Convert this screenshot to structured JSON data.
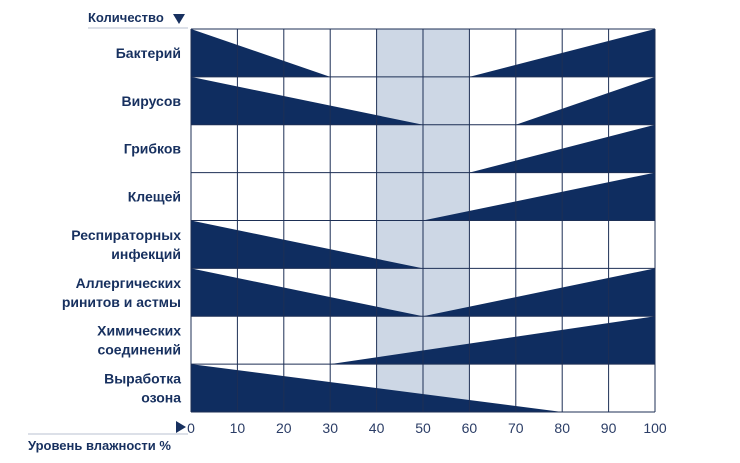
{
  "chart_data": {
    "type": "area",
    "title": "",
    "ylabel": "Количество",
    "xlabel": "Уровень влажности %",
    "xlim": [
      0,
      100
    ],
    "x_ticks": [
      0,
      10,
      20,
      30,
      40,
      50,
      60,
      70,
      80,
      90,
      100
    ],
    "optimal_zone": [
      40,
      60
    ],
    "colors": {
      "fill": "#0f2d60",
      "grid": "#1d2f55",
      "zone": "#cdd7e5",
      "text": "#17305f"
    },
    "rows": [
      {
        "label": "Бактерий",
        "segments": [
          {
            "x0": 0,
            "x1": 30,
            "y0": 1,
            "y1": 0
          },
          {
            "x0": 60,
            "x1": 100,
            "y0": 0,
            "y1": 1
          }
        ]
      },
      {
        "label": "Вирусов",
        "segments": [
          {
            "x0": 0,
            "x1": 50,
            "y0": 1,
            "y1": 0
          },
          {
            "x0": 70,
            "x1": 100,
            "y0": 0,
            "y1": 1
          }
        ]
      },
      {
        "label": "Грибков",
        "segments": [
          {
            "x0": 60,
            "x1": 100,
            "y0": 0,
            "y1": 1
          }
        ]
      },
      {
        "label": "Клещей",
        "segments": [
          {
            "x0": 50,
            "x1": 100,
            "y0": 0,
            "y1": 1
          }
        ]
      },
      {
        "label": "Респираторных инфекций",
        "segments": [
          {
            "x0": 0,
            "x1": 50,
            "y0": 1,
            "y1": 0
          }
        ]
      },
      {
        "label": "Аллергических ринитов и астмы",
        "segments": [
          {
            "x0": 0,
            "x1": 50,
            "y0": 1,
            "y1": 0
          },
          {
            "x0": 50,
            "x1": 100,
            "y0": 0,
            "y1": 1
          }
        ]
      },
      {
        "label": "Химических соединений",
        "segments": [
          {
            "x0": 30,
            "x1": 100,
            "y0": 0,
            "y1": 1
          }
        ]
      },
      {
        "label": "Выработка озона",
        "segments": [
          {
            "x0": 0,
            "x1": 80,
            "y0": 1,
            "y1": 0
          }
        ]
      }
    ]
  }
}
